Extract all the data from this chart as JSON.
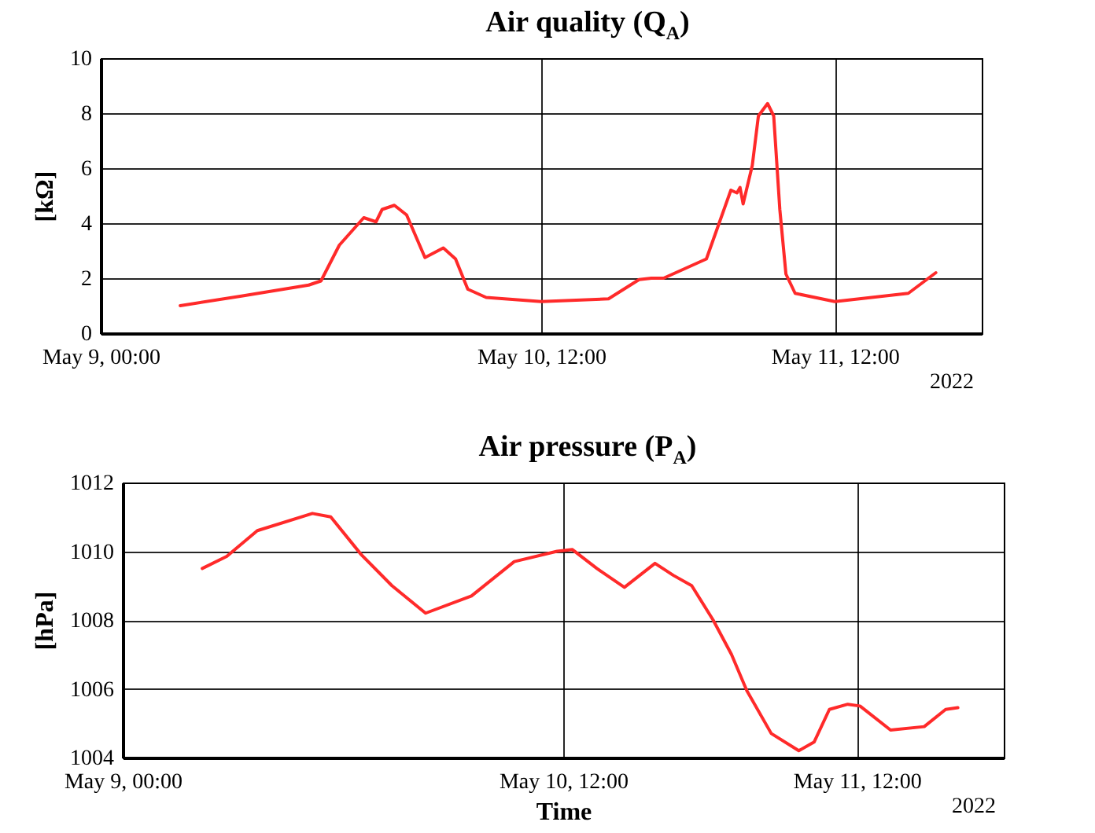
{
  "chart_data": [
    {
      "type": "line",
      "title": "Air quality (Q$_{A}$)",
      "ylabel": "[kΩ]",
      "annotations": [
        "2022"
      ],
      "grid": true,
      "marker": "none",
      "line_style": "solid",
      "xlim": [
        "2022-05-09T00:00",
        "2022-05-12T00:00"
      ],
      "xticks": [
        {
          "value": "2022-05-09T00:00",
          "label": "May 9, 00:00"
        },
        {
          "value": "2022-05-10T12:00",
          "label": "May 10, 12:00"
        },
        {
          "value": "2022-05-11T12:00",
          "label": "May 11, 12:00"
        }
      ],
      "ylim": [
        0,
        10
      ],
      "yticks": [
        0,
        2,
        4,
        6,
        8,
        10
      ],
      "x": [
        "2022-05-09T06:30",
        "2022-05-09T11:30",
        "2022-05-09T17:00",
        "2022-05-09T18:00",
        "2022-05-09T19:30",
        "2022-05-09T21:30",
        "2022-05-09T22:30",
        "2022-05-09T23:00",
        "2022-05-10T00:00",
        "2022-05-10T01:00",
        "2022-05-10T02:30",
        "2022-05-10T04:00",
        "2022-05-10T05:00",
        "2022-05-10T06:00",
        "2022-05-10T07:30",
        "2022-05-10T12:00",
        "2022-05-10T17:30",
        "2022-05-10T20:00",
        "2022-05-10T21:00",
        "2022-05-10T22:00",
        "2022-05-11T01:30",
        "2022-05-11T02:30",
        "2022-05-11T03:30",
        "2022-05-11T04:00",
        "2022-05-11T04:15",
        "2022-05-11T04:30",
        "2022-05-11T05:15",
        "2022-05-11T05:45",
        "2022-05-11T06:30",
        "2022-05-11T07:00",
        "2022-05-11T07:30",
        "2022-05-11T08:00",
        "2022-05-11T08:45",
        "2022-05-11T12:00",
        "2022-05-11T18:00",
        "2022-05-11T20:15"
      ],
      "series": [
        {
          "color": "#ff2a2a",
          "values": [
            1.0,
            1.35,
            1.75,
            1.9,
            3.2,
            4.2,
            4.05,
            4.5,
            4.65,
            4.3,
            2.75,
            3.1,
            2.7,
            1.6,
            1.3,
            1.15,
            1.25,
            1.95,
            2.0,
            2.0,
            2.7,
            3.95,
            5.2,
            5.1,
            5.3,
            4.7,
            6.1,
            7.9,
            8.35,
            7.9,
            4.5,
            2.15,
            1.45,
            1.15,
            1.45,
            2.2
          ]
        }
      ]
    },
    {
      "type": "line",
      "title": "Air pressure (P$_{A}$)",
      "xlabel": "Time",
      "ylabel": "[hPa]",
      "annotations": [
        "2022"
      ],
      "grid": true,
      "marker": "none",
      "line_style": "solid",
      "xlim": [
        "2022-05-09T00:00",
        "2022-05-12T00:00"
      ],
      "xticks": [
        {
          "value": "2022-05-09T00:00",
          "label": "May 9, 00:00"
        },
        {
          "value": "2022-05-10T12:00",
          "label": "May 10, 12:00"
        },
        {
          "value": "2022-05-11T12:00",
          "label": "May 11, 12:00"
        }
      ],
      "ylim": [
        1004,
        1012
      ],
      "yticks": [
        1004,
        1006,
        1008,
        1010,
        1012
      ],
      "x": [
        "2022-05-09T06:30",
        "2022-05-09T08:30",
        "2022-05-09T11:00",
        "2022-05-09T15:30",
        "2022-05-09T17:00",
        "2022-05-09T19:30",
        "2022-05-09T22:00",
        "2022-05-10T00:45",
        "2022-05-10T04:30",
        "2022-05-10T08:00",
        "2022-05-10T11:30",
        "2022-05-10T12:45",
        "2022-05-10T14:45",
        "2022-05-10T17:00",
        "2022-05-10T19:30",
        "2022-05-10T21:00",
        "2022-05-10T22:30",
        "2022-05-11T00:15",
        "2022-05-11T01:45",
        "2022-05-11T03:00",
        "2022-05-11T05:00",
        "2022-05-11T07:15",
        "2022-05-11T08:30",
        "2022-05-11T09:45",
        "2022-05-11T11:15",
        "2022-05-11T12:15",
        "2022-05-11T14:45",
        "2022-05-11T17:30",
        "2022-05-11T19:15",
        "2022-05-11T20:15"
      ],
      "series": [
        {
          "color": "#ff2a2a",
          "values": [
            1009.5,
            1009.85,
            1010.6,
            1011.1,
            1011.0,
            1009.9,
            1009.0,
            1008.2,
            1008.7,
            1009.7,
            1010.0,
            1010.05,
            1009.5,
            1008.95,
            1009.65,
            1009.3,
            1009.0,
            1008.0,
            1007.0,
            1005.95,
            1004.7,
            1004.2,
            1004.45,
            1005.4,
            1005.55,
            1005.5,
            1004.8,
            1004.9,
            1005.4,
            1005.45
          ]
        }
      ]
    }
  ]
}
